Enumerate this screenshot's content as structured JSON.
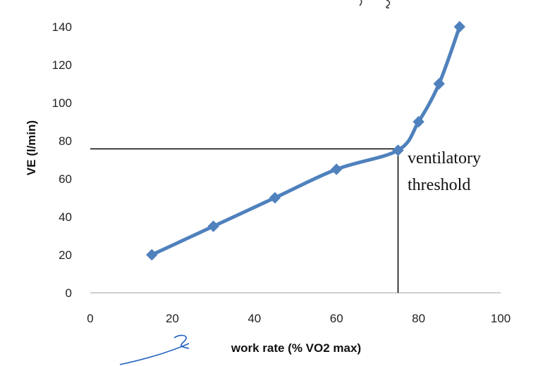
{
  "chart_data": {
    "type": "line",
    "title": "",
    "xlabel": "work rate (% VO2 max)",
    "ylabel": "VE (l/min)",
    "xlim": [
      0,
      100
    ],
    "ylim": [
      0,
      140
    ],
    "x_ticks": [
      0,
      20,
      40,
      60,
      80,
      100
    ],
    "y_ticks": [
      0,
      20,
      40,
      60,
      80,
      100,
      120,
      140
    ],
    "grid": false,
    "series": [
      {
        "x": [
          15,
          30,
          45,
          60,
          75,
          80,
          85,
          90
        ],
        "y": [
          20,
          35,
          50,
          65,
          75,
          90,
          110,
          140
        ],
        "color": "#4f81bd",
        "marker": "diamond"
      }
    ],
    "threshold": {
      "x": 75,
      "y": 75
    },
    "annotation": {
      "line1": "ventilatory",
      "line2": "threshold"
    }
  }
}
